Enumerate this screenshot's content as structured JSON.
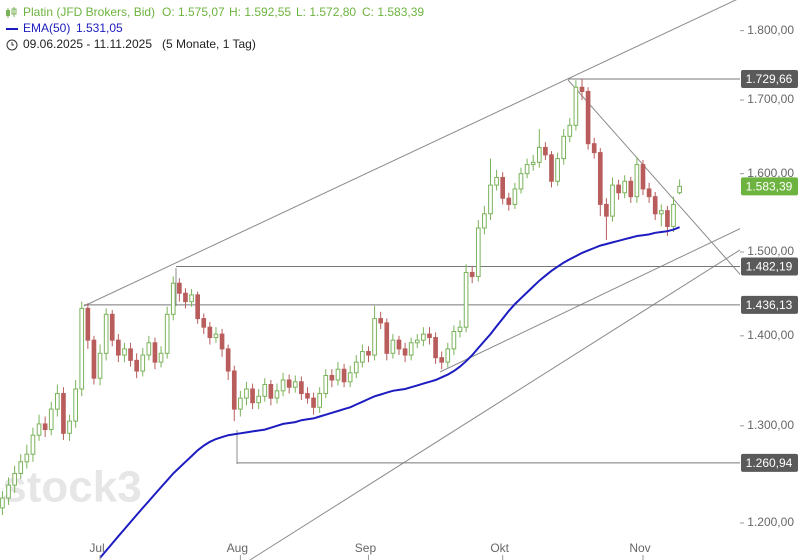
{
  "chart_data": {
    "type": "candlestick",
    "watermark": "stock3",
    "period": "09.06.2025 - 11.11.2025",
    "period_note": "(5 Monate, 1 Tag)",
    "ohlc_labels": [
      "O: 1.575,07",
      "H: 1.592,55",
      "L: 1.572,80",
      "C: 1.583,39"
    ],
    "log_scale": true,
    "grid": false,
    "ylim": [
      1164,
      1846
    ],
    "yticks": [
      {
        "value": 1200,
        "label": "1.200,00"
      },
      {
        "value": 1300,
        "label": "1.300,00"
      },
      {
        "value": 1400,
        "label": "1.400,00"
      },
      {
        "value": 1500,
        "label": "1.500,00"
      },
      {
        "value": 1600,
        "label": "1.600,00"
      },
      {
        "value": 1700,
        "label": "1.700,00"
      },
      {
        "value": 1800,
        "label": "1.800,00"
      }
    ],
    "xlim": [
      -0.4,
      120.9
    ],
    "xticks": [
      {
        "value": 16,
        "label": "Jul"
      },
      {
        "value": 39,
        "label": "Aug"
      },
      {
        "value": 60,
        "label": "Sep"
      },
      {
        "value": 82,
        "label": "Okt"
      },
      {
        "value": 105,
        "label": "Nov"
      }
    ],
    "levels": [
      {
        "value": 1729.66,
        "label": "1.729,66"
      },
      {
        "value": 1482.19,
        "label": "1.482,19"
      },
      {
        "value": 1436.13,
        "label": "1.436,13"
      },
      {
        "value": 1260.94,
        "label": "1.260,94"
      }
    ],
    "last": {
      "value": 1583.39,
      "label": "1.583,39",
      "color": "#6db33f"
    },
    "series": [
      {
        "name": "Platin (JFD Brokers, Bid)",
        "up_color": "#7ab35a",
        "down_color": "#b85c5c",
        "open": [
          1215,
          1225,
          1238,
          1250,
          1262,
          1270,
          1290,
          1302,
          1296,
          1318,
          1335,
          1292,
          1305,
          1340,
          1432,
          1395,
          1352,
          1380,
          1425,
          1395,
          1378,
          1385,
          1372,
          1360,
          1378,
          1392,
          1370,
          1380,
          1425,
          1462,
          1450,
          1440,
          1448,
          1420,
          1410,
          1398,
          1402,
          1385,
          1360,
          1318,
          1330,
          1340,
          1325,
          1332,
          1345,
          1330,
          1338,
          1350,
          1342,
          1348,
          1335,
          1330,
          1320,
          1335,
          1355,
          1350,
          1362,
          1348,
          1358,
          1370,
          1382,
          1378,
          1420,
          1415,
          1380,
          1395,
          1385,
          1378,
          1392,
          1395,
          1402,
          1398,
          1375,
          1370,
          1385,
          1405,
          1410,
          1475,
          1470,
          1530,
          1548,
          1585,
          1595,
          1568,
          1560,
          1580,
          1600,
          1612,
          1615,
          1635,
          1625,
          1590,
          1620,
          1650,
          1665,
          1718,
          1712,
          1640,
          1628,
          1560,
          1545,
          1585,
          1575,
          1590,
          1570,
          1612,
          1580,
          1570,
          1548,
          1552,
          1532,
          1575.07
        ],
        "high": [
          1232,
          1246,
          1258,
          1270,
          1280,
          1298,
          1312,
          1310,
          1326,
          1345,
          1342,
          1312,
          1350,
          1440,
          1438,
          1400,
          1390,
          1432,
          1430,
          1402,
          1392,
          1392,
          1380,
          1386,
          1400,
          1398,
          1388,
          1434,
          1470,
          1468,
          1456,
          1455,
          1452,
          1426,
          1416,
          1410,
          1408,
          1390,
          1366,
          1338,
          1348,
          1346,
          1340,
          1352,
          1350,
          1346,
          1358,
          1356,
          1355,
          1354,
          1342,
          1336,
          1342,
          1362,
          1362,
          1370,
          1368,
          1366,
          1378,
          1390,
          1388,
          1435,
          1428,
          1420,
          1402,
          1400,
          1392,
          1398,
          1402,
          1410,
          1410,
          1404,
          1382,
          1392,
          1412,
          1418,
          1485,
          1482,
          1540,
          1558,
          1620,
          1605,
          1602,
          1575,
          1588,
          1608,
          1620,
          1625,
          1660,
          1642,
          1630,
          1628,
          1660,
          1675,
          1728,
          1729.66,
          1718,
          1648,
          1634,
          1568,
          1595,
          1592,
          1598,
          1596,
          1622,
          1618,
          1588,
          1576,
          1560,
          1558,
          1570,
          1592.55
        ],
        "low": [
          1208,
          1218,
          1230,
          1244,
          1255,
          1262,
          1284,
          1288,
          1290,
          1310,
          1285,
          1284,
          1298,
          1332,
          1385,
          1345,
          1344,
          1372,
          1388,
          1370,
          1370,
          1365,
          1352,
          1354,
          1372,
          1362,
          1364,
          1374,
          1418,
          1440,
          1432,
          1434,
          1414,
          1402,
          1390,
          1392,
          1376,
          1350,
          1305,
          1310,
          1322,
          1318,
          1318,
          1326,
          1322,
          1324,
          1332,
          1335,
          1336,
          1328,
          1324,
          1312,
          1314,
          1330,
          1342,
          1344,
          1342,
          1342,
          1352,
          1364,
          1370,
          1372,
          1408,
          1372,
          1374,
          1378,
          1370,
          1372,
          1386,
          1388,
          1390,
          1368,
          1362,
          1364,
          1378,
          1398,
          1404,
          1462,
          1464,
          1522,
          1540,
          1578,
          1560,
          1552,
          1554,
          1574,
          1594,
          1604,
          1608,
          1618,
          1582,
          1584,
          1612,
          1642,
          1658,
          1700,
          1632,
          1620,
          1545,
          1515,
          1538,
          1566,
          1568,
          1562,
          1562,
          1572,
          1562,
          1540,
          1532,
          1520,
          1525,
          1572.8
        ],
        "close": [
          1225,
          1238,
          1250,
          1262,
          1270,
          1290,
          1302,
          1296,
          1318,
          1335,
          1292,
          1305,
          1340,
          1432,
          1395,
          1352,
          1380,
          1425,
          1395,
          1378,
          1385,
          1372,
          1360,
          1378,
          1392,
          1370,
          1380,
          1425,
          1462,
          1450,
          1440,
          1448,
          1420,
          1410,
          1398,
          1402,
          1385,
          1360,
          1318,
          1330,
          1340,
          1325,
          1332,
          1345,
          1330,
          1338,
          1350,
          1342,
          1348,
          1335,
          1330,
          1320,
          1335,
          1355,
          1350,
          1362,
          1348,
          1358,
          1370,
          1382,
          1378,
          1420,
          1415,
          1380,
          1395,
          1385,
          1378,
          1392,
          1395,
          1402,
          1398,
          1375,
          1370,
          1385,
          1405,
          1410,
          1475,
          1470,
          1530,
          1548,
          1585,
          1595,
          1568,
          1560,
          1580,
          1600,
          1612,
          1615,
          1635,
          1625,
          1590,
          1620,
          1650,
          1665,
          1718,
          1712,
          1640,
          1628,
          1560,
          1545,
          1585,
          1575,
          1590,
          1570,
          1612,
          1580,
          1570,
          1548,
          1552,
          1532,
          1560,
          1583.39
        ]
      },
      {
        "name": "EMA(50)",
        "color": "#1c1cc0",
        "value_label": "1.531,05",
        "values": [
          null,
          null,
          null,
          null,
          null,
          null,
          null,
          null,
          null,
          null,
          null,
          null,
          null,
          null,
          null,
          null,
          1166,
          1173,
          1180,
          1187,
          1194,
          1201,
          1208,
          1215,
          1222,
          1229,
          1236,
          1243,
          1250,
          1256,
          1262,
          1268,
          1274,
          1279,
          1283,
          1286,
          1288,
          1290,
          1291,
          1292,
          1293,
          1294,
          1295,
          1296,
          1298,
          1300,
          1302,
          1303,
          1304,
          1306,
          1307,
          1308,
          1310,
          1312,
          1314,
          1316,
          1318,
          1320,
          1323,
          1326,
          1329,
          1332,
          1334,
          1336,
          1338,
          1339,
          1340,
          1342,
          1344,
          1346,
          1348,
          1350,
          1353,
          1356,
          1360,
          1365,
          1371,
          1378,
          1386,
          1394,
          1402,
          1411,
          1420,
          1429,
          1437,
          1444,
          1451,
          1458,
          1465,
          1471,
          1477,
          1482,
          1487,
          1491,
          1495,
          1499,
          1502,
          1505,
          1508,
          1510,
          1512,
          1514,
          1516,
          1518,
          1520,
          1521,
          1522,
          1524,
          1525,
          1526,
          1528,
          1531.05
        ]
      }
    ]
  }
}
